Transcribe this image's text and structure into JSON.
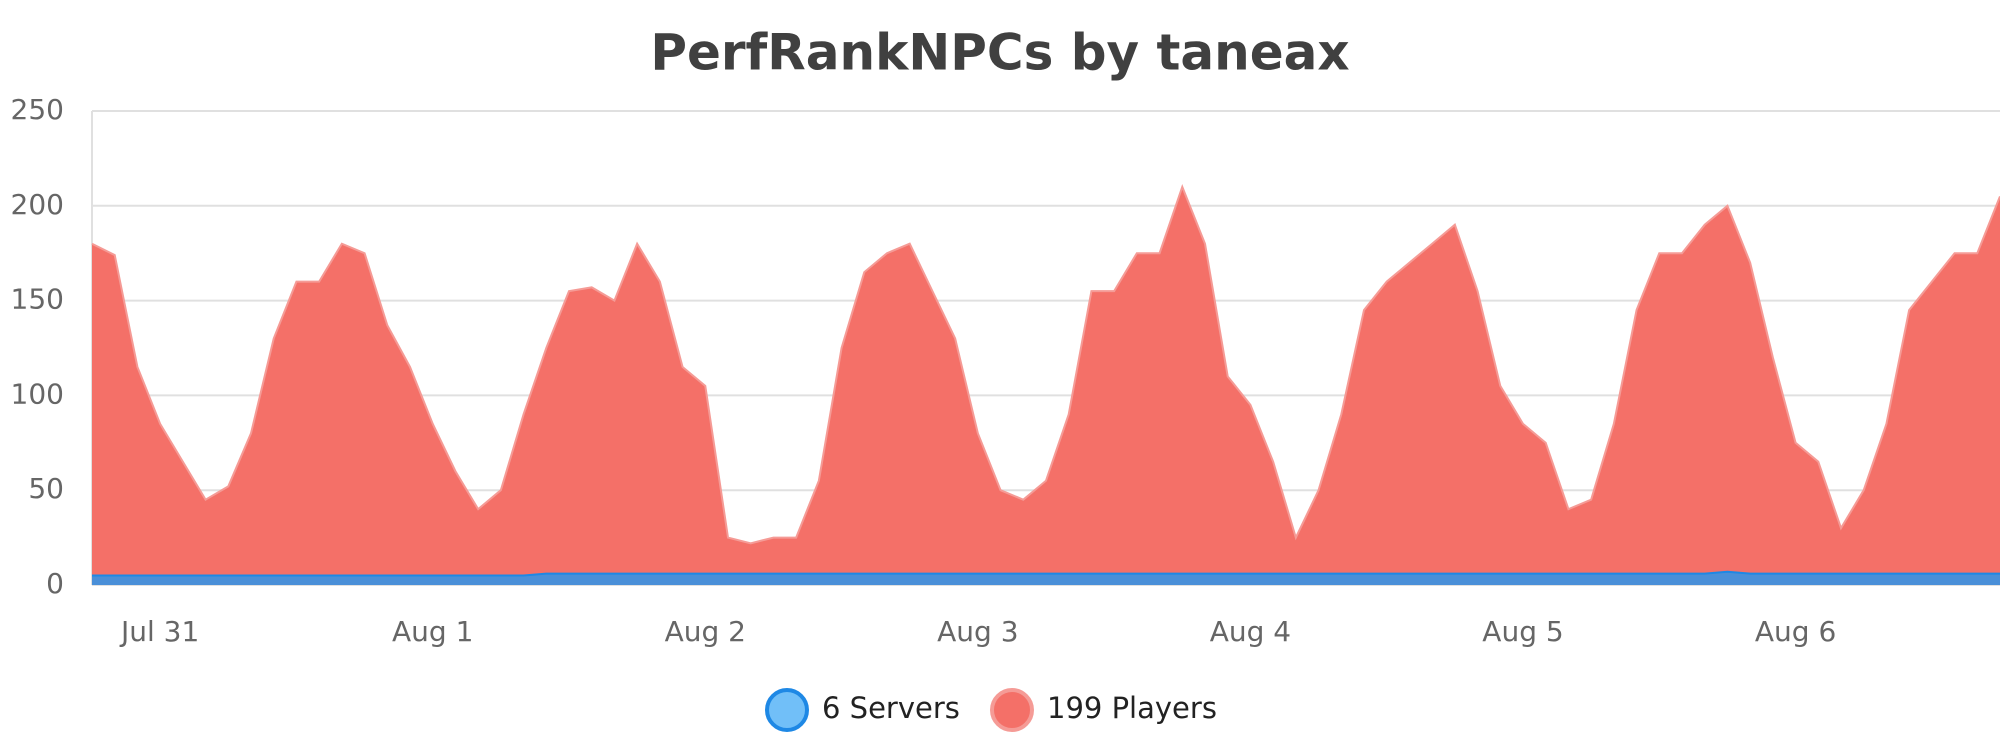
{
  "chart_data": {
    "type": "area",
    "title": "PerfRankNPCs by taneax",
    "categories": [
      null,
      null,
      null,
      "Jul 31",
      null,
      null,
      null,
      null,
      null,
      null,
      null,
      null,
      null,
      null,
      null,
      "Aug 1",
      null,
      null,
      null,
      null,
      null,
      null,
      null,
      null,
      null,
      null,
      null,
      "Aug 2",
      null,
      null,
      null,
      null,
      null,
      null,
      null,
      null,
      null,
      null,
      null,
      "Aug 3",
      null,
      null,
      null,
      null,
      null,
      null,
      null,
      null,
      null,
      null,
      null,
      "Aug 4",
      null,
      null,
      null,
      null,
      null,
      null,
      null,
      null,
      null,
      null,
      null,
      "Aug 5",
      null,
      null,
      null,
      null,
      null,
      null,
      null,
      null,
      null,
      null,
      null,
      "Aug 6",
      null,
      null,
      null,
      null,
      null,
      null,
      null,
      null,
      null
    ],
    "series": [
      {
        "name": "6 Servers",
        "color": "#1e88e5",
        "values": [
          5,
          5,
          5,
          5,
          5,
          5,
          5,
          5,
          5,
          5,
          5,
          5,
          5,
          5,
          5,
          5,
          5,
          5,
          5,
          5,
          6,
          6,
          6,
          6,
          6,
          6,
          6,
          6,
          6,
          6,
          6,
          6,
          6,
          6,
          6,
          6,
          6,
          6,
          6,
          6,
          6,
          6,
          6,
          6,
          6,
          6,
          6,
          6,
          6,
          6,
          6,
          6,
          6,
          6,
          6,
          6,
          6,
          6,
          6,
          6,
          6,
          6,
          6,
          6,
          6,
          6,
          6,
          6,
          6,
          6,
          6,
          6,
          7,
          6,
          6,
          6,
          6,
          6,
          6,
          6,
          6,
          6,
          6,
          6,
          6
        ]
      },
      {
        "name": "199 Players",
        "color": "#f47068",
        "values": [
          180,
          174,
          115,
          85,
          65,
          45,
          52,
          80,
          130,
          160,
          160,
          180,
          175,
          137,
          115,
          85,
          60,
          40,
          50,
          90,
          125,
          155,
          157,
          150,
          180,
          160,
          115,
          105,
          25,
          22,
          25,
          25,
          55,
          125,
          165,
          175,
          180,
          155,
          130,
          80,
          50,
          45,
          55,
          90,
          155,
          155,
          175,
          175,
          210,
          180,
          110,
          95,
          65,
          25,
          50,
          90,
          145,
          160,
          170,
          180,
          190,
          155,
          105,
          85,
          75,
          40,
          45,
          85,
          145,
          175,
          175,
          190,
          200,
          170,
          120,
          75,
          65,
          30,
          50,
          85,
          145,
          160,
          175,
          175,
          205
        ]
      }
    ],
    "ylim": [
      0,
      250
    ],
    "yticks": [
      0,
      50,
      100,
      150,
      200,
      250
    ],
    "grid": true
  }
}
